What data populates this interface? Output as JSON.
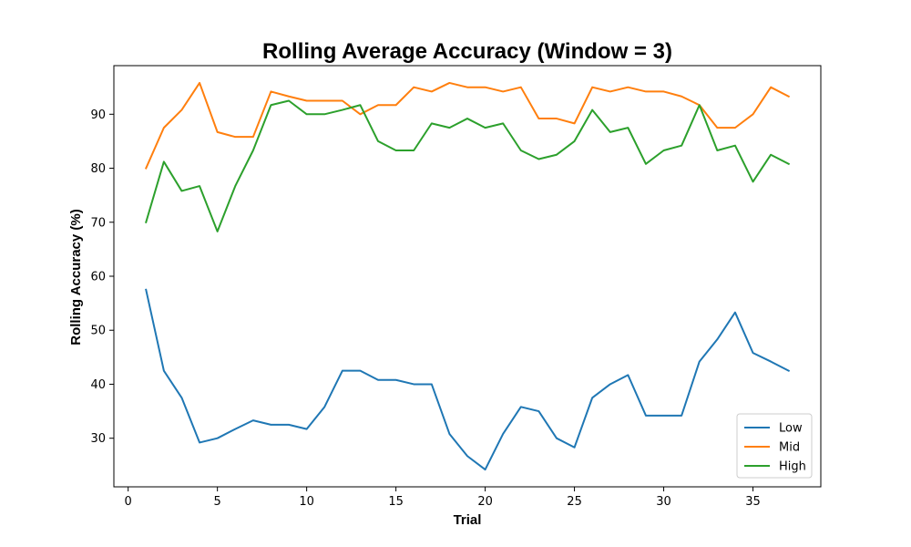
{
  "chart_data": {
    "type": "line",
    "title": "Rolling Average Accuracy (Window = 3)",
    "xlabel": "Trial",
    "ylabel": "Rolling Accuracy (%)",
    "xlim": [
      -0.8,
      38.8
    ],
    "ylim": [
      21,
      99
    ],
    "xticks": [
      0,
      5,
      10,
      15,
      20,
      25,
      30,
      35
    ],
    "yticks": [
      30,
      40,
      50,
      60,
      70,
      80,
      90
    ],
    "grid": false,
    "legend": {
      "position": "lower-right",
      "entries": [
        "Low",
        "Mid",
        "High"
      ]
    },
    "x": [
      1,
      2,
      3,
      4,
      5,
      6,
      7,
      8,
      9,
      10,
      11,
      12,
      13,
      14,
      15,
      16,
      17,
      18,
      19,
      20,
      21,
      22,
      23,
      24,
      25,
      26,
      27,
      28,
      29,
      30,
      31,
      32,
      33,
      34,
      35,
      36,
      37
    ],
    "series": [
      {
        "name": "Low",
        "color": "#1f77b4",
        "values": [
          57.5,
          42.5,
          37.5,
          29.2,
          30.0,
          31.7,
          33.3,
          32.5,
          32.5,
          31.7,
          35.8,
          42.5,
          42.5,
          40.8,
          40.8,
          40.0,
          40.0,
          30.8,
          26.7,
          24.2,
          30.8,
          35.8,
          35.0,
          30.0,
          28.3,
          37.5,
          40.0,
          41.7,
          34.2,
          34.2,
          34.2,
          44.2,
          48.3,
          53.3,
          45.8,
          44.2,
          42.5
        ]
      },
      {
        "name": "Mid",
        "color": "#ff7f0e",
        "values": [
          80.0,
          87.5,
          90.8,
          95.8,
          86.7,
          85.8,
          85.8,
          94.2,
          93.3,
          92.5,
          92.5,
          92.5,
          90.0,
          91.7,
          91.7,
          95.0,
          94.2,
          95.8,
          95.0,
          95.0,
          94.2,
          95.0,
          89.2,
          89.2,
          88.3,
          95.0,
          94.2,
          95.0,
          94.2,
          94.2,
          93.3,
          91.7,
          87.5,
          87.5,
          90.0,
          95.0,
          93.3
        ]
      },
      {
        "name": "High",
        "color": "#2ca02c",
        "values": [
          70.0,
          81.2,
          75.8,
          76.7,
          68.3,
          76.7,
          83.3,
          91.7,
          92.5,
          90.0,
          90.0,
          90.8,
          91.7,
          85.0,
          83.3,
          83.3,
          88.3,
          87.5,
          89.2,
          87.5,
          88.3,
          83.3,
          81.7,
          82.5,
          85.0,
          90.8,
          86.7,
          87.5,
          80.8,
          83.3,
          84.2,
          91.7,
          83.3,
          84.2,
          77.5,
          82.5,
          80.8
        ]
      }
    ]
  }
}
